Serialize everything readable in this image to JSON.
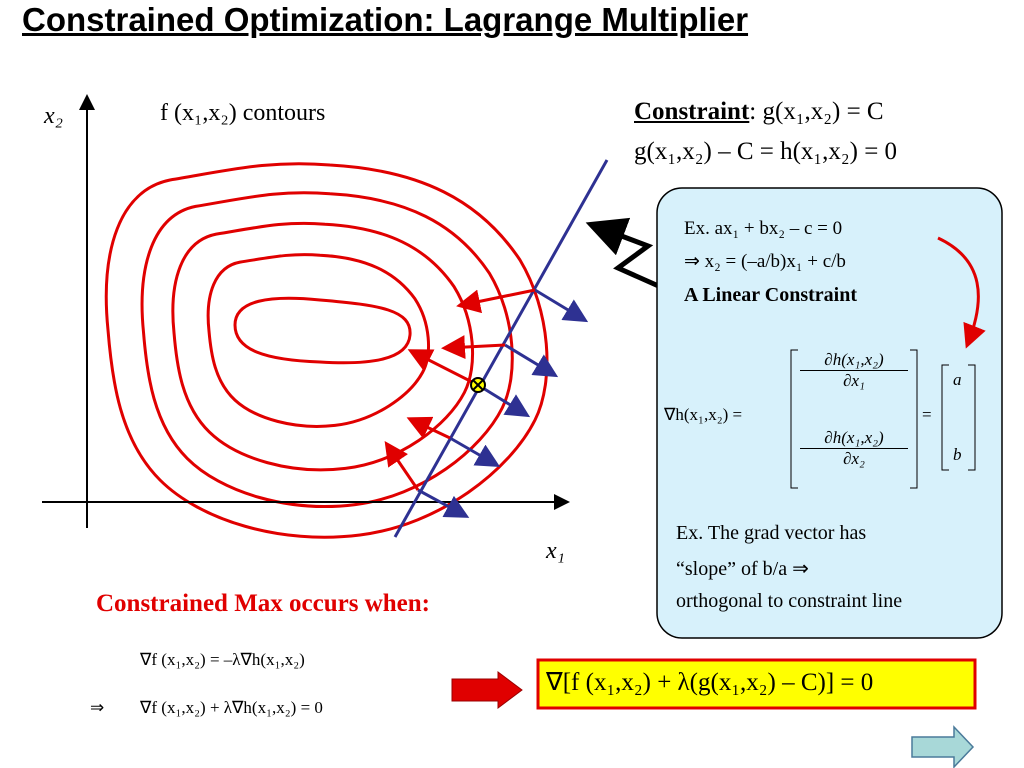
{
  "title": "Constrained Optimization: Lagrange Multiplier",
  "graph": {
    "y_axis_label": "x₂",
    "x_axis_label": "x₁",
    "contours_label": "f (x₁,x₂) contours"
  },
  "constraint": {
    "heading": "Constraint",
    "equation": ": g(x₁,x₂) = C",
    "equation2": "g(x₁,x₂) – C = h(x₁,x₂) = 0"
  },
  "box": {
    "example": "Ex.  ax₁ + bx₂ – c = 0",
    "implication": "⇒ x₂ = (–a/b)x₁ + c/b",
    "label": "A Linear Constraint",
    "gradient": {
      "lhs": "∇h(x₁,x₂) =",
      "top_num": "∂h(x₁,x₂)",
      "top_den": "∂x₁",
      "bottom_num": "∂h(x₁,x₂)",
      "bottom_den": "∂x₂",
      "equals": "=",
      "rhs_top": "a",
      "rhs_bottom": "b"
    },
    "note": [
      "Ex.  The grad vector has",
      "“slope” of b/a ⇒",
      "orthogonal to constraint line"
    ]
  },
  "condition": {
    "heading": "Constrained Max occurs when:",
    "eq1": "∇f (x₁,x₂) = –λ∇h(x₁,x₂)",
    "eq2_symbol": "⇒",
    "eq2": "∇f (x₁,x₂) + λ∇h(x₁,x₂) = 0",
    "result": "∇[f (x₁,x₂) + λ(g(x₁,x₂) – C)] = 0"
  }
}
